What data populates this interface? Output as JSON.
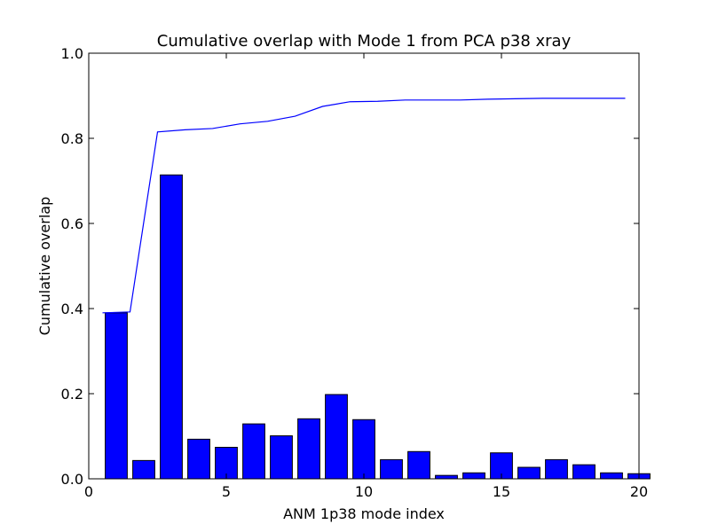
{
  "chart_data": {
    "type": "bar",
    "title": "Cumulative overlap with Mode 1 from PCA p38 xray",
    "xlabel": "ANM 1p38 mode index",
    "ylabel": "Cumulative overlap",
    "xlim": [
      0,
      20
    ],
    "ylim": [
      0,
      1.0
    ],
    "x_ticks": [
      0,
      5,
      10,
      15,
      20
    ],
    "x_tick_labels": [
      "0",
      "5",
      "10",
      "15",
      "20"
    ],
    "y_ticks": [
      0.0,
      0.2,
      0.4,
      0.6,
      0.8,
      1.0
    ],
    "y_tick_labels": [
      "0.0",
      "0.2",
      "0.4",
      "0.6",
      "0.8",
      "1.0"
    ],
    "grid": false,
    "legend": false,
    "bar_color": "#0000ff",
    "line_color": "#0000ff",
    "series": [
      {
        "type": "bar",
        "x": [
          1,
          2,
          3,
          4,
          5,
          6,
          7,
          8,
          9,
          10,
          11,
          12,
          13,
          14,
          15,
          16,
          17,
          18,
          19,
          20
        ],
        "values": [
          0.39,
          0.043,
          0.714,
          0.093,
          0.074,
          0.129,
          0.101,
          0.141,
          0.198,
          0.139,
          0.045,
          0.064,
          0.008,
          0.014,
          0.061,
          0.027,
          0.045,
          0.033,
          0.014,
          0.012
        ]
      },
      {
        "type": "line",
        "x": [
          0.5,
          1.5,
          2.5,
          3.5,
          4.5,
          5.5,
          6.5,
          7.5,
          8.5,
          9.5,
          10.5,
          11.5,
          12.5,
          13.5,
          14.5,
          15.5,
          16.5,
          17.5,
          18.5,
          19.5
        ],
        "values": [
          0.39,
          0.392,
          0.815,
          0.82,
          0.823,
          0.834,
          0.84,
          0.852,
          0.875,
          0.886,
          0.887,
          0.89,
          0.89,
          0.89,
          0.892,
          0.893,
          0.894,
          0.894,
          0.894,
          0.894
        ]
      }
    ]
  }
}
